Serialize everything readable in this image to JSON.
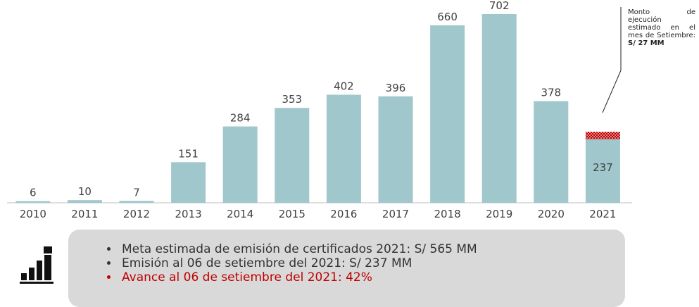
{
  "chart_data": {
    "type": "bar",
    "categories": [
      "2010",
      "2011",
      "2012",
      "2013",
      "2014",
      "2015",
      "2016",
      "2017",
      "2018",
      "2019",
      "2020",
      "2021"
    ],
    "series": [
      {
        "color": "#9fc7cc",
        "values": [
          6,
          10,
          7,
          151,
          284,
          353,
          402,
          396,
          660,
          702,
          378,
          237
        ]
      },
      {
        "color": "#c00000",
        "hatch": true,
        "values": [
          null,
          null,
          null,
          null,
          null,
          null,
          null,
          null,
          null,
          null,
          null,
          27
        ]
      }
    ],
    "stacked": true,
    "annotation": {
      "text": "Monto de ejecución estimado en el mes de Setiembre:",
      "bold": "S/ 27 MM"
    }
  },
  "notes": [
    {
      "text": "Meta estimada de emisión de certificados 2021: S/ 565 MM",
      "color": "#333333"
    },
    {
      "text": "Emisión al 06 de setiembre del 2021: S/ 237 MM",
      "color": "#333333"
    },
    {
      "text": "Avance al 06 de setiembre del 2021: 42%",
      "color": "#c00000"
    }
  ]
}
